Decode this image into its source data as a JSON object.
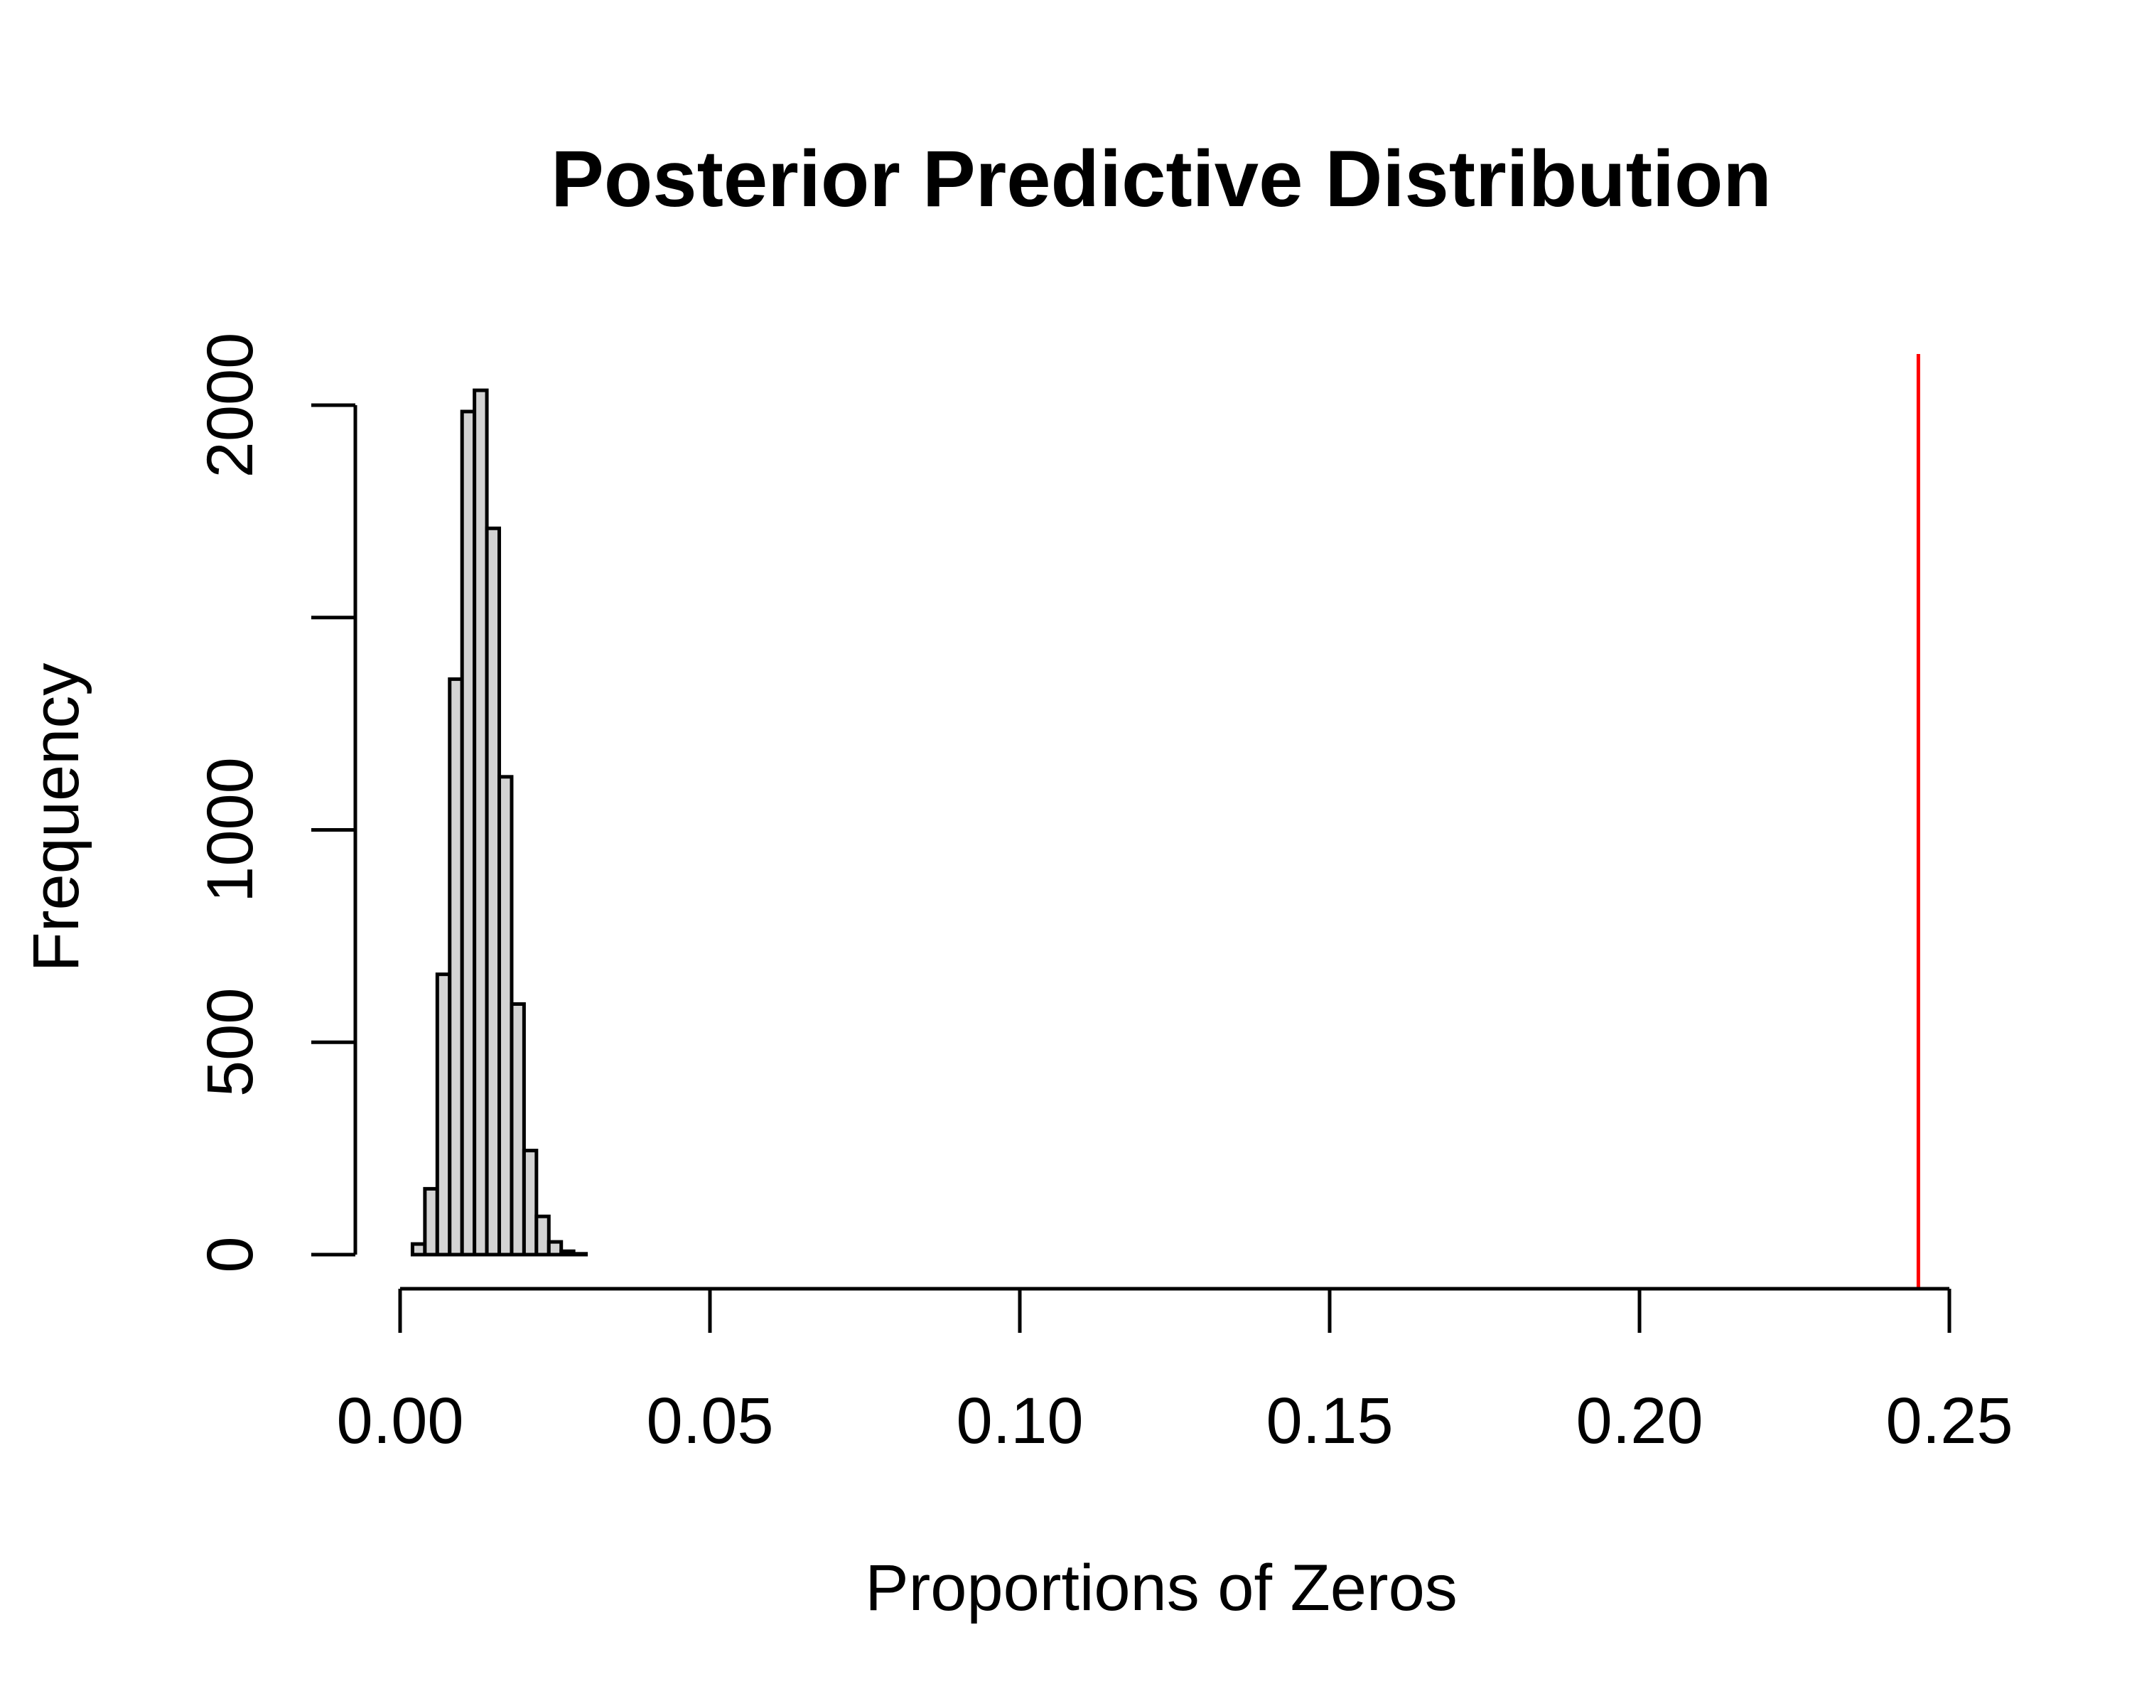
{
  "chart_data": {
    "type": "bar",
    "title": "Posterior Predictive Distribution",
    "xlabel": "Proportions of Zeros",
    "ylabel": "Frequency",
    "xlim": [
      0.0,
      0.25
    ],
    "ylim": [
      0,
      2000
    ],
    "x_ticks": [
      0.0,
      0.05,
      0.1,
      0.15,
      0.2,
      0.25
    ],
    "x_tick_labels": [
      "0.00",
      "0.05",
      "0.10",
      "0.15",
      "0.20",
      "0.25"
    ],
    "y_ticks": [
      0,
      500,
      1000,
      1500,
      2000
    ],
    "y_tick_labels": [
      "0",
      "500",
      "1000",
      "",
      "2000"
    ],
    "bin_width": 0.002,
    "bins": [
      {
        "x0": 0.002,
        "x1": 0.004,
        "count": 25
      },
      {
        "x0": 0.004,
        "x1": 0.006,
        "count": 155
      },
      {
        "x0": 0.006,
        "x1": 0.008,
        "count": 660
      },
      {
        "x0": 0.008,
        "x1": 0.01,
        "count": 1355
      },
      {
        "x0": 0.01,
        "x1": 0.012,
        "count": 1985
      },
      {
        "x0": 0.012,
        "x1": 0.014,
        "count": 2035
      },
      {
        "x0": 0.014,
        "x1": 0.016,
        "count": 1710
      },
      {
        "x0": 0.016,
        "x1": 0.018,
        "count": 1125
      },
      {
        "x0": 0.018,
        "x1": 0.02,
        "count": 590
      },
      {
        "x0": 0.02,
        "x1": 0.022,
        "count": 245
      },
      {
        "x0": 0.022,
        "x1": 0.024,
        "count": 90
      },
      {
        "x0": 0.024,
        "x1": 0.026,
        "count": 30
      },
      {
        "x0": 0.026,
        "x1": 0.028,
        "count": 8
      },
      {
        "x0": 0.028,
        "x1": 0.03,
        "count": 2
      }
    ],
    "reference_line": {
      "x": 0.245,
      "color": "#ff0000"
    },
    "bar_fill": "#d3d3d3",
    "bar_stroke": "#000000",
    "grid": false,
    "legend": "none"
  }
}
